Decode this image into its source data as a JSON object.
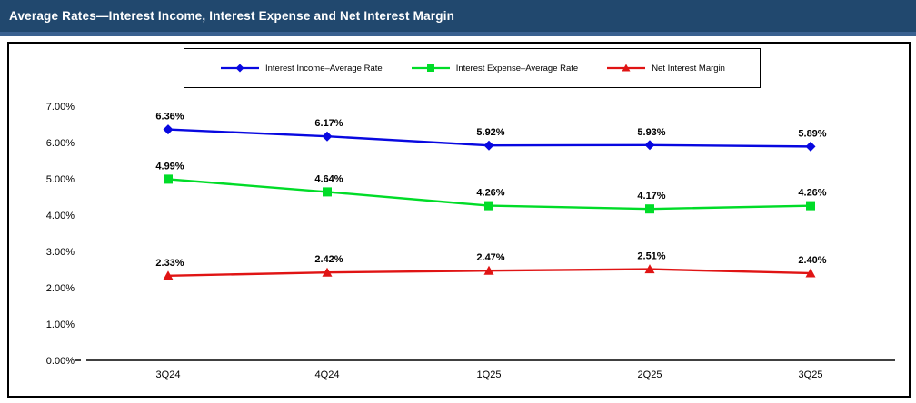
{
  "header": {
    "title": "Average Rates—Interest Income, Interest Expense and Net Interest Margin",
    "bg_color": "#21486E",
    "text_color": "#FFFFFF"
  },
  "chart_data": {
    "type": "line",
    "title": "Average Rates—Interest Income, Interest Expense and Net Interest Margin",
    "categories": [
      "3Q24",
      "4Q24",
      "1Q25",
      "2Q25",
      "3Q25"
    ],
    "series": [
      {
        "name": "Interest Income–Average Rate",
        "values": [
          6.36,
          6.17,
          5.92,
          5.93,
          5.89
        ],
        "labels": [
          "6.36%",
          "6.17%",
          "5.92%",
          "5.93%",
          "5.89%"
        ],
        "color": "#0808E0",
        "marker": "diamond"
      },
      {
        "name": "Interest Expense–Average Rate",
        "values": [
          4.99,
          4.64,
          4.26,
          4.17,
          4.26
        ],
        "labels": [
          "4.99%",
          "4.64%",
          "4.26%",
          "4.17%",
          "4.26%"
        ],
        "color": "#00DC28",
        "marker": "square"
      },
      {
        "name": "Net Interest Margin",
        "values": [
          2.33,
          2.42,
          2.47,
          2.51,
          2.4
        ],
        "labels": [
          "2.33%",
          "2.42%",
          "2.47%",
          "2.51%",
          "2.40%"
        ],
        "color": "#E01414",
        "marker": "triangle"
      }
    ],
    "y_axis": {
      "tick_labels": [
        "0.00%",
        "1.00%",
        "2.00%",
        "3.00%",
        "4.00%",
        "5.00%",
        "6.00%",
        "7.00%"
      ],
      "min": 0,
      "max": 7,
      "step": 1
    },
    "legend_position": "top",
    "grid": false
  }
}
